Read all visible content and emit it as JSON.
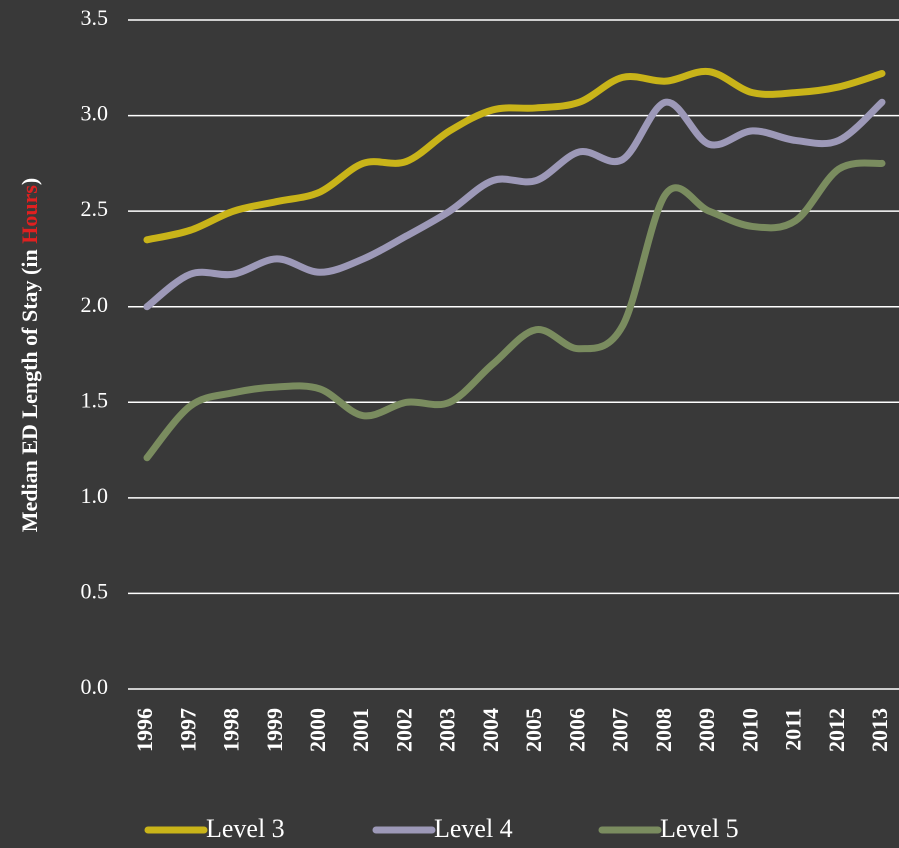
{
  "chart_data": {
    "type": "line",
    "y_label": {
      "before": "Median ED Length of Stay (in ",
      "highlight": "Hours",
      "after": ")"
    },
    "categories": [
      "1996",
      "1997",
      "1998",
      "1999",
      "2000",
      "2001",
      "2002",
      "2003",
      "2004",
      "2005",
      "2006",
      "2007",
      "2008",
      "2009",
      "2010",
      "2011",
      "2012",
      "2013"
    ],
    "series": [
      {
        "name": "Level 3",
        "color": "#c9b419",
        "values": [
          2.35,
          2.4,
          2.5,
          2.55,
          2.6,
          2.75,
          2.76,
          2.92,
          3.03,
          3.04,
          3.07,
          3.2,
          3.18,
          3.23,
          3.12,
          3.12,
          3.15,
          3.22
        ]
      },
      {
        "name": "Level 4",
        "color": "#9d99b8",
        "values": [
          2.0,
          2.17,
          2.17,
          2.25,
          2.18,
          2.25,
          2.37,
          2.5,
          2.66,
          2.66,
          2.81,
          2.77,
          3.07,
          2.85,
          2.92,
          2.87,
          2.87,
          3.07
        ]
      },
      {
        "name": "Level 5",
        "color": "#7a8c5f",
        "values": [
          1.21,
          1.48,
          1.55,
          1.58,
          1.57,
          1.43,
          1.5,
          1.5,
          1.7,
          1.88,
          1.78,
          1.9,
          2.59,
          2.5,
          2.42,
          2.45,
          2.72,
          2.75
        ]
      }
    ],
    "ylim": [
      0,
      3.5
    ],
    "yticks": [
      {
        "value": 0,
        "label": "0.0"
      },
      0.5,
      {
        "value": 1,
        "label": "1.0"
      },
      1.5,
      {
        "value": 2,
        "label": "2.0"
      },
      2.5,
      {
        "value": 3,
        "label": "3.0"
      },
      3.5
    ],
    "grid": true,
    "legend": "bottom"
  }
}
